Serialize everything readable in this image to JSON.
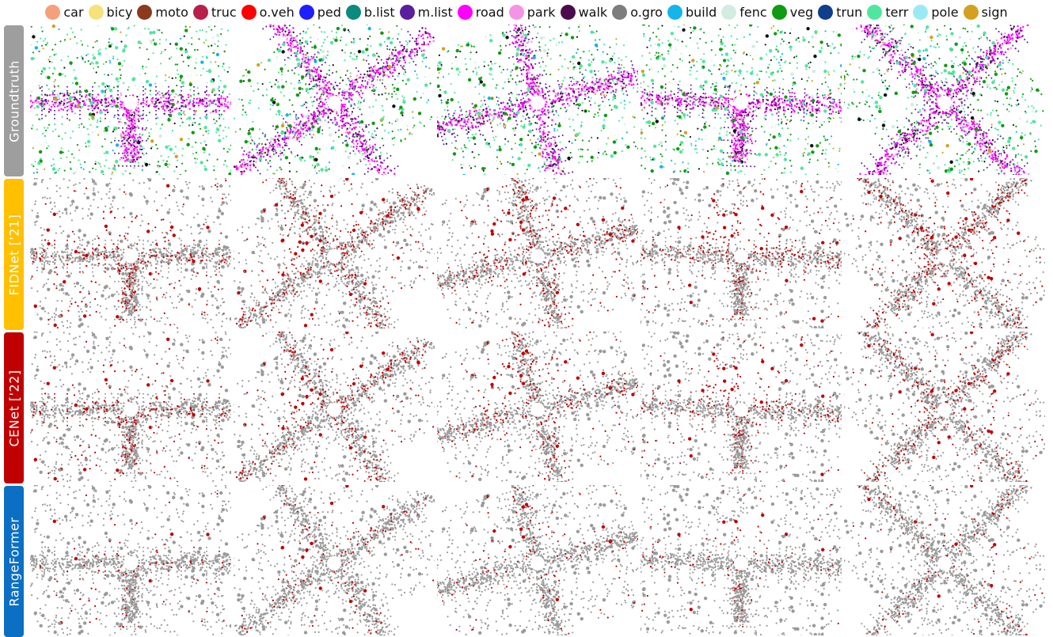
{
  "legend": [
    {
      "label": "car",
      "color": "#f4a07a",
      "icon": "circle"
    },
    {
      "label": "bicy",
      "color": "#f5e27a",
      "icon": "circle"
    },
    {
      "label": "moto",
      "color": "#8b3a1e",
      "icon": "circle"
    },
    {
      "label": "truc",
      "color": "#b81f4a",
      "icon": "circle"
    },
    {
      "label": "o.veh",
      "color": "#ff0000",
      "icon": "circle"
    },
    {
      "label": "ped",
      "color": "#1e1eff",
      "icon": "circle"
    },
    {
      "label": "b.list",
      "color": "#0c8a7e",
      "icon": "circle"
    },
    {
      "label": "m.list",
      "color": "#5a1e9e",
      "icon": "circle"
    },
    {
      "label": "road",
      "color": "#ff00ff",
      "icon": "circle"
    },
    {
      "label": "park",
      "color": "#f593e6",
      "icon": "circle"
    },
    {
      "label": "walk",
      "color": "#4b0a4b",
      "icon": "circle"
    },
    {
      "label": "o.gro",
      "color": "#7d7d7d",
      "icon": "circle"
    },
    {
      "label": "build",
      "color": "#14b4ec",
      "icon": "circle"
    },
    {
      "label": "fenc",
      "color": "#d2ece0",
      "icon": "circle"
    },
    {
      "label": "veg",
      "color": "#129a12",
      "icon": "circle"
    },
    {
      "label": "trun",
      "color": "#0f3f8a",
      "icon": "circle"
    },
    {
      "label": "terr",
      "color": "#50e6a0",
      "icon": "circle"
    },
    {
      "label": "pole",
      "color": "#9aeaf6",
      "icon": "circle"
    },
    {
      "label": "sign",
      "color": "#d4a020",
      "icon": "circle"
    }
  ],
  "rows": [
    {
      "label": "Groundtruth",
      "color": "#9e9e9e",
      "kind": "groundtruth"
    },
    {
      "label": "FIDNet ['21]",
      "color": "#ffc000",
      "kind": "error",
      "error_level": 0.55
    },
    {
      "label": "CENet ['22]",
      "color": "#c00000",
      "kind": "error",
      "error_level": 0.45
    },
    {
      "label": "RangeFormer",
      "color": "#0b6fc4",
      "kind": "error",
      "error_level": 0.18
    }
  ],
  "scenes": [
    {
      "shape": "straight",
      "angle": 0
    },
    {
      "shape": "cross",
      "angle": -35
    },
    {
      "shape": "cross",
      "angle": -15
    },
    {
      "shape": "straight",
      "angle": 2
    },
    {
      "shape": "cross",
      "angle": 45
    }
  ],
  "colors": {
    "correct": "#9a9a9a",
    "error": "#c00000",
    "background": "#ffffff"
  }
}
